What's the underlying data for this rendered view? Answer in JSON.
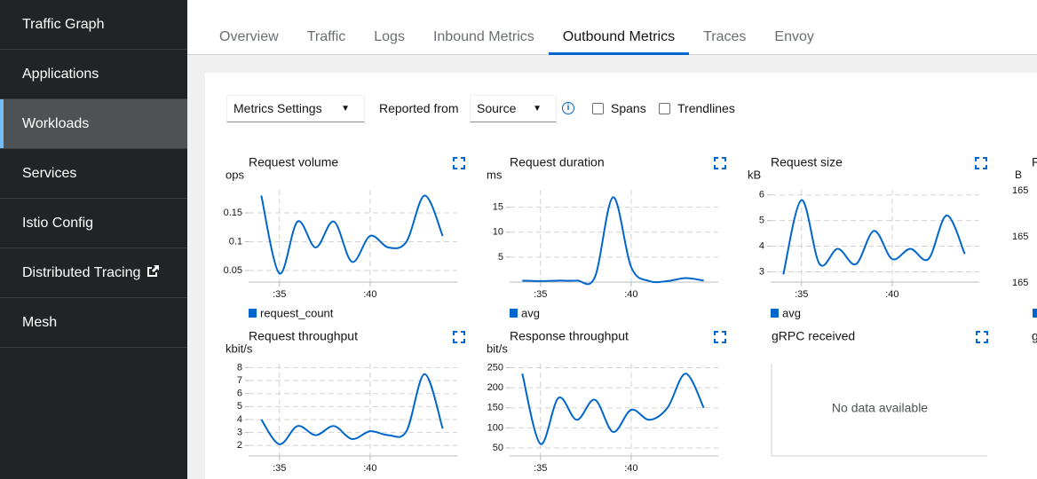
{
  "sidebar": {
    "items": [
      "Traffic Graph",
      "Applications",
      "Workloads",
      "Services",
      "Istio Config",
      "Distributed Tracing",
      "Mesh"
    ],
    "active": 2
  },
  "tabs": {
    "items": [
      "Overview",
      "Traffic",
      "Logs",
      "Inbound Metrics",
      "Outbound Metrics",
      "Traces",
      "Envoy"
    ],
    "active": 4
  },
  "toolbar": {
    "metrics_settings": "Metrics Settings",
    "reported_from": "Reported from",
    "source": "Source",
    "spans": "Spans",
    "trendlines": "Trendlines"
  },
  "charts": [
    {
      "title": "Request volume",
      "unit": "ops",
      "legend": "request_count",
      "color": "#0066cc",
      "xlim": [
        33.3,
        44.8
      ],
      "xticks": [
        {
          "value": 35,
          "label": ":35"
        },
        {
          "value": 40,
          "label": ":40"
        }
      ],
      "ylim": [
        0.03,
        0.19
      ],
      "yticks": [
        0.05,
        0.1,
        0.15
      ],
      "x": [
        34,
        35,
        36,
        37,
        38,
        39,
        40,
        41,
        42,
        43,
        44
      ],
      "values": [
        0.18,
        0.045,
        0.135,
        0.09,
        0.135,
        0.065,
        0.11,
        0.09,
        0.1,
        0.18,
        0.11
      ]
    },
    {
      "title": "Request duration",
      "unit": "ms",
      "legend": "avg",
      "color": "#0066cc",
      "xlim": [
        33.3,
        44.8
      ],
      "xticks": [
        {
          "value": 35,
          "label": ":35"
        },
        {
          "value": 40,
          "label": ":40"
        }
      ],
      "ylim": [
        0,
        18.5
      ],
      "yticks": [
        5,
        10,
        15
      ],
      "x": [
        34,
        35,
        36,
        37,
        38,
        39,
        40,
        41,
        42,
        43,
        44
      ],
      "values": [
        0.3,
        0.2,
        0.3,
        0.3,
        1,
        17,
        3,
        0.2,
        0.2,
        0.8,
        0.3
      ]
    },
    {
      "title": "Request size",
      "unit": "kB",
      "legend": "avg",
      "color": "#0066cc",
      "xlim": [
        33.3,
        44.8
      ],
      "xticks": [
        {
          "value": 35,
          "label": ":35"
        },
        {
          "value": 40,
          "label": ":40"
        }
      ],
      "ylim": [
        2.6,
        6.2
      ],
      "yticks": [
        3,
        4,
        5,
        6
      ],
      "x": [
        34,
        35,
        36,
        37,
        38,
        39,
        40,
        41,
        42,
        43,
        44
      ],
      "values": [
        2.9,
        5.8,
        3.3,
        3.9,
        3.3,
        4.6,
        3.5,
        3.9,
        3.5,
        5.2,
        3.7
      ]
    },
    {
      "title": "Request throughput",
      "unit": "kbit/s",
      "color": "#0066cc",
      "xlim": [
        33.3,
        44.8
      ],
      "xticks": [
        {
          "value": 35,
          "label": ":35"
        },
        {
          "value": 40,
          "label": ":40"
        }
      ],
      "ylim": [
        1.2,
        8.3
      ],
      "yticks": [
        2,
        3,
        4,
        5,
        6,
        7,
        8
      ],
      "x": [
        34,
        35,
        36,
        37,
        38,
        39,
        40,
        41,
        42,
        43,
        44
      ],
      "values": [
        4,
        2.1,
        3.5,
        2.8,
        3.5,
        2.5,
        3.1,
        2.8,
        3.1,
        7.5,
        3.3
      ]
    },
    {
      "title": "Response throughput",
      "unit": "bit/s",
      "color": "#0066cc",
      "xlim": [
        33.3,
        44.8
      ],
      "xticks": [
        {
          "value": 35,
          "label": ":35"
        },
        {
          "value": 40,
          "label": ":40"
        }
      ],
      "ylim": [
        30,
        260
      ],
      "yticks": [
        50,
        100,
        150,
        200,
        250
      ],
      "x": [
        34,
        35,
        36,
        37,
        38,
        39,
        40,
        41,
        42,
        43,
        44
      ],
      "values": [
        235,
        60,
        175,
        120,
        170,
        90,
        145,
        120,
        150,
        235,
        150
      ]
    }
  ],
  "grpc": {
    "title": "gRPC received",
    "message": "No data available"
  },
  "partial": {
    "title": "R",
    "unit": "B",
    "ticks": [
      "165",
      "165",
      "165"
    ],
    "next_title": "g"
  }
}
